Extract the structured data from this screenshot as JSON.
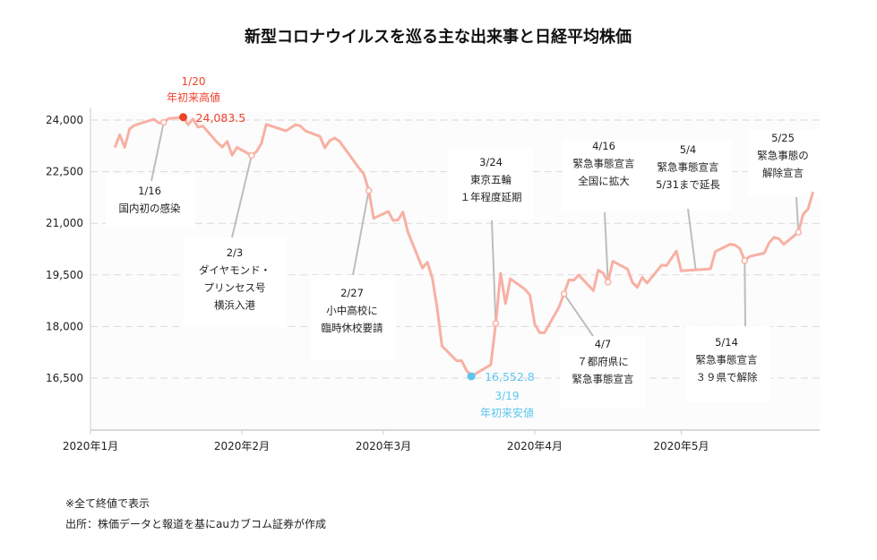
{
  "chart_data": {
    "type": "line",
    "title": "新型コロナウイルスを巡る主な出来事と日経平均株価",
    "xlabel": "",
    "ylabel": "",
    "x_ticks": [
      "2020年1月",
      "2020年2月",
      "2020年3月",
      "2020年4月",
      "2020年5月"
    ],
    "x_tick_dates": [
      "2020-01-01",
      "2020-02-01",
      "2020-03-01",
      "2020-04-01",
      "2020-05-01"
    ],
    "xlim": [
      "2020-01-01",
      "2020-05-29"
    ],
    "y_ticks": [
      16500,
      18000,
      19500,
      21000,
      22500,
      24000
    ],
    "y_tick_labels": [
      "16,500",
      "18,000",
      "19,500",
      "21,000",
      "22,500",
      "24,000"
    ],
    "ylim": [
      15000,
      24000
    ],
    "grid": "horizontal dashed",
    "colors": {
      "line": "#f8b0a3",
      "high": "#f0412b",
      "low": "#5cc6ee",
      "leader": "#bdbdbd",
      "grid": "#d9d9d9"
    },
    "series": [
      {
        "points": [
          [
            "2020-01-06",
            23204
          ],
          [
            "2020-01-07",
            23575
          ],
          [
            "2020-01-08",
            23205
          ],
          [
            "2020-01-09",
            23739
          ],
          [
            "2020-01-10",
            23850
          ],
          [
            "2020-01-14",
            24025
          ],
          [
            "2020-01-15",
            23916
          ],
          [
            "2020-01-16",
            23933
          ],
          [
            "2020-01-17",
            24041
          ],
          [
            "2020-01-20",
            24083.5
          ],
          [
            "2020-01-21",
            23864
          ],
          [
            "2020-01-22",
            24031
          ],
          [
            "2020-01-23",
            23795
          ],
          [
            "2020-01-24",
            23827
          ],
          [
            "2020-01-27",
            23343
          ],
          [
            "2020-01-28",
            23215
          ],
          [
            "2020-01-29",
            23379
          ],
          [
            "2020-01-30",
            22977
          ],
          [
            "2020-01-31",
            23205
          ],
          [
            "2020-02-03",
            22972
          ],
          [
            "2020-02-04",
            23084
          ],
          [
            "2020-02-05",
            23320
          ],
          [
            "2020-02-06",
            23873
          ],
          [
            "2020-02-07",
            23827
          ],
          [
            "2020-02-10",
            23685
          ],
          [
            "2020-02-12",
            23861
          ],
          [
            "2020-02-13",
            23827
          ],
          [
            "2020-02-14",
            23687
          ],
          [
            "2020-02-17",
            23523
          ],
          [
            "2020-02-18",
            23194
          ],
          [
            "2020-02-19",
            23400
          ],
          [
            "2020-02-20",
            23479
          ],
          [
            "2020-02-21",
            23386
          ],
          [
            "2020-02-25",
            22605
          ],
          [
            "2020-02-26",
            22426
          ],
          [
            "2020-02-27",
            21948
          ],
          [
            "2020-02-28",
            21142
          ],
          [
            "2020-03-02",
            21344
          ],
          [
            "2020-03-03",
            21082
          ],
          [
            "2020-03-04",
            21100
          ],
          [
            "2020-03-05",
            21329
          ],
          [
            "2020-03-06",
            20749
          ],
          [
            "2020-03-09",
            19698
          ],
          [
            "2020-03-10",
            19867
          ],
          [
            "2020-03-11",
            19416
          ],
          [
            "2020-03-12",
            18559
          ],
          [
            "2020-03-13",
            17431
          ],
          [
            "2020-03-16",
            17002
          ],
          [
            "2020-03-17",
            17011
          ],
          [
            "2020-03-18",
            16726
          ],
          [
            "2020-03-19",
            16552.8
          ],
          [
            "2020-03-23",
            16887
          ],
          [
            "2020-03-24",
            18092
          ],
          [
            "2020-03-25",
            19546
          ],
          [
            "2020-03-26",
            18664
          ],
          [
            "2020-03-27",
            19389
          ],
          [
            "2020-03-30",
            19084
          ],
          [
            "2020-03-31",
            18917
          ],
          [
            "2020-04-01",
            18065
          ],
          [
            "2020-04-02",
            17819
          ],
          [
            "2020-04-03",
            17820
          ],
          [
            "2020-04-06",
            18576
          ],
          [
            "2020-04-07",
            18950
          ],
          [
            "2020-04-08",
            19353
          ],
          [
            "2020-04-09",
            19345
          ],
          [
            "2020-04-10",
            19498
          ],
          [
            "2020-04-13",
            19043
          ],
          [
            "2020-04-14",
            19638
          ],
          [
            "2020-04-15",
            19550
          ],
          [
            "2020-04-16",
            19290
          ],
          [
            "2020-04-17",
            19897
          ],
          [
            "2020-04-20",
            19669
          ],
          [
            "2020-04-21",
            19280
          ],
          [
            "2020-04-22",
            19138
          ],
          [
            "2020-04-23",
            19429
          ],
          [
            "2020-04-24",
            19262
          ],
          [
            "2020-04-27",
            19783
          ],
          [
            "2020-04-28",
            19771
          ],
          [
            "2020-04-30",
            20194
          ],
          [
            "2020-05-01",
            19619
          ],
          [
            "2020-05-07",
            19674
          ],
          [
            "2020-05-08",
            20179
          ],
          [
            "2020-05-11",
            20390
          ],
          [
            "2020-05-12",
            20366
          ],
          [
            "2020-05-13",
            20267
          ],
          [
            "2020-05-14",
            19915
          ],
          [
            "2020-05-15",
            20037
          ],
          [
            "2020-05-18",
            20133
          ],
          [
            "2020-05-19",
            20433
          ],
          [
            "2020-05-20",
            20595
          ],
          [
            "2020-05-21",
            20552
          ],
          [
            "2020-05-22",
            20388
          ],
          [
            "2020-05-25",
            20741
          ],
          [
            "2020-05-26",
            21271
          ],
          [
            "2020-05-27",
            21419
          ],
          [
            "2020-05-28",
            21916
          ]
        ]
      }
    ],
    "high": {
      "date": "2020-01-20",
      "value": 24083.5,
      "date_label": "1/20",
      "label": "年初来高値",
      "value_label": "24,083.5"
    },
    "low": {
      "date": "2020-03-19",
      "value": 16552.8,
      "date_label": "3/19",
      "label": "年初来安値",
      "value_label": "16,552.8"
    },
    "annotations": [
      {
        "date": "2020-01-16",
        "lines": [
          "1/16",
          "国内初の感染"
        ]
      },
      {
        "date": "2020-02-03",
        "lines": [
          "2/3",
          "ダイヤモンド・",
          "プリンセス号",
          "横浜入港"
        ]
      },
      {
        "date": "2020-02-27",
        "lines": [
          "2/27",
          "小中高校に",
          "臨時休校要請"
        ]
      },
      {
        "date": "2020-03-24",
        "lines": [
          "3/24",
          "東京五輪",
          "１年程度延期"
        ]
      },
      {
        "date": "2020-04-07",
        "lines": [
          "4/7",
          "７都府県に",
          "緊急事態宣言"
        ]
      },
      {
        "date": "2020-04-16",
        "lines": [
          "4/16",
          "緊急事態宣言",
          "全国に拡大"
        ]
      },
      {
        "date": "2020-05-04",
        "lines": [
          "5/4",
          "緊急事態宣言",
          "5/31まで延長"
        ],
        "marker": false
      },
      {
        "date": "2020-05-14",
        "lines": [
          "5/14",
          "緊急事態宣言",
          "３９県で解除"
        ]
      },
      {
        "date": "2020-05-25",
        "lines": [
          "5/25",
          "緊急事態の",
          "解除宣言"
        ]
      }
    ]
  },
  "footnotes": [
    "※全て終値で表示",
    "出所：株価データと報道を基にauカブコム証券が作成"
  ]
}
